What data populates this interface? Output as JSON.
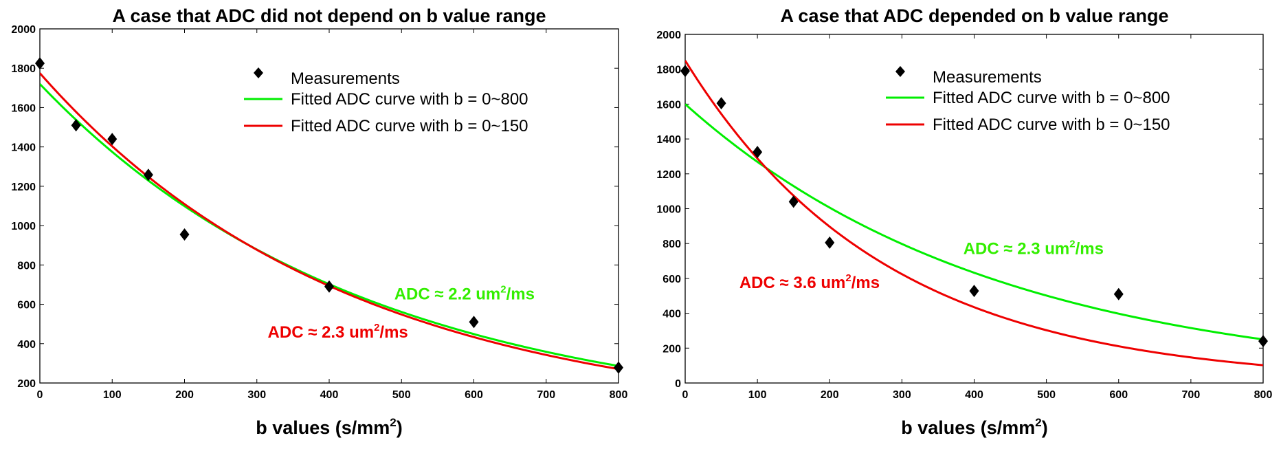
{
  "chart_data": [
    {
      "type": "scatter",
      "title": "A case that ADC did not depend on b value range",
      "xlabel": "b values (s/mm",
      "xlabel_sup": "2",
      "xlabel_end": ")",
      "ylabel": "",
      "xlim": [
        0,
        800
      ],
      "ylim": [
        200,
        2000
      ],
      "xticks": [
        0,
        100,
        200,
        300,
        400,
        500,
        600,
        700,
        800
      ],
      "yticks": [
        200,
        400,
        600,
        800,
        1000,
        1200,
        1400,
        1600,
        1800,
        2000
      ],
      "grid": false,
      "legend_position": "top-center",
      "measurements": {
        "name": "Measurements",
        "x": [
          0,
          50,
          100,
          150,
          200,
          400,
          600,
          800
        ],
        "y": [
          1825,
          1510,
          1440,
          1258,
          955,
          690,
          510,
          278
        ]
      },
      "curves": [
        {
          "name": "Fitted ADC curve with b = 0~800",
          "color": "#00ee00",
          "s0": 1720,
          "adc_per_s_mm2": 0.00224
        },
        {
          "name": "Fitted ADC curve with b = 0~150",
          "color": "#ee0000",
          "s0": 1775,
          "adc_per_s_mm2": 0.00235
        }
      ],
      "annotations": [
        {
          "text": "ADC ≈ 2.2 um",
          "sup": "2",
          "after": "/ms",
          "color": "#33ee00",
          "x": 490,
          "y": 625
        },
        {
          "text": "ADC ≈ 2.3 um",
          "sup": "2",
          "after": "/ms",
          "color": "#ee0000",
          "x": 315,
          "y": 430
        }
      ]
    },
    {
      "type": "scatter",
      "title": "A case that ADC depended on b value range",
      "xlabel": "b values (s/mm",
      "xlabel_sup": "2",
      "xlabel_end": ")",
      "ylabel": "",
      "xlim": [
        0,
        800
      ],
      "ylim": [
        0,
        2000
      ],
      "xticks": [
        0,
        100,
        200,
        300,
        400,
        500,
        600,
        700,
        800
      ],
      "yticks": [
        0,
        200,
        400,
        600,
        800,
        1000,
        1200,
        1400,
        1600,
        1800,
        2000
      ],
      "grid": false,
      "legend_position": "top-center",
      "measurements": {
        "name": "Measurements",
        "x": [
          0,
          50,
          100,
          150,
          200,
          400,
          600,
          800
        ],
        "y": [
          1790,
          1605,
          1325,
          1040,
          805,
          528,
          510,
          240
        ]
      },
      "curves": [
        {
          "name": "Fitted ADC curve with b = 0~800",
          "color": "#00ee00",
          "s0": 1600,
          "adc_per_s_mm2": 0.00232
        },
        {
          "name": "Fitted ADC curve with b = 0~150",
          "color": "#ee0000",
          "s0": 1850,
          "adc_per_s_mm2": 0.00362
        }
      ],
      "annotations": [
        {
          "text": "ADC ≈ 2.3 um",
          "sup": "2",
          "after": "/ms",
          "color": "#33ee00",
          "x": 385,
          "y": 740
        },
        {
          "text": "ADC ≈ 3.6 um",
          "sup": "2",
          "after": "/ms",
          "color": "#ee0000",
          "x": 75,
          "y": 545
        }
      ]
    }
  ]
}
